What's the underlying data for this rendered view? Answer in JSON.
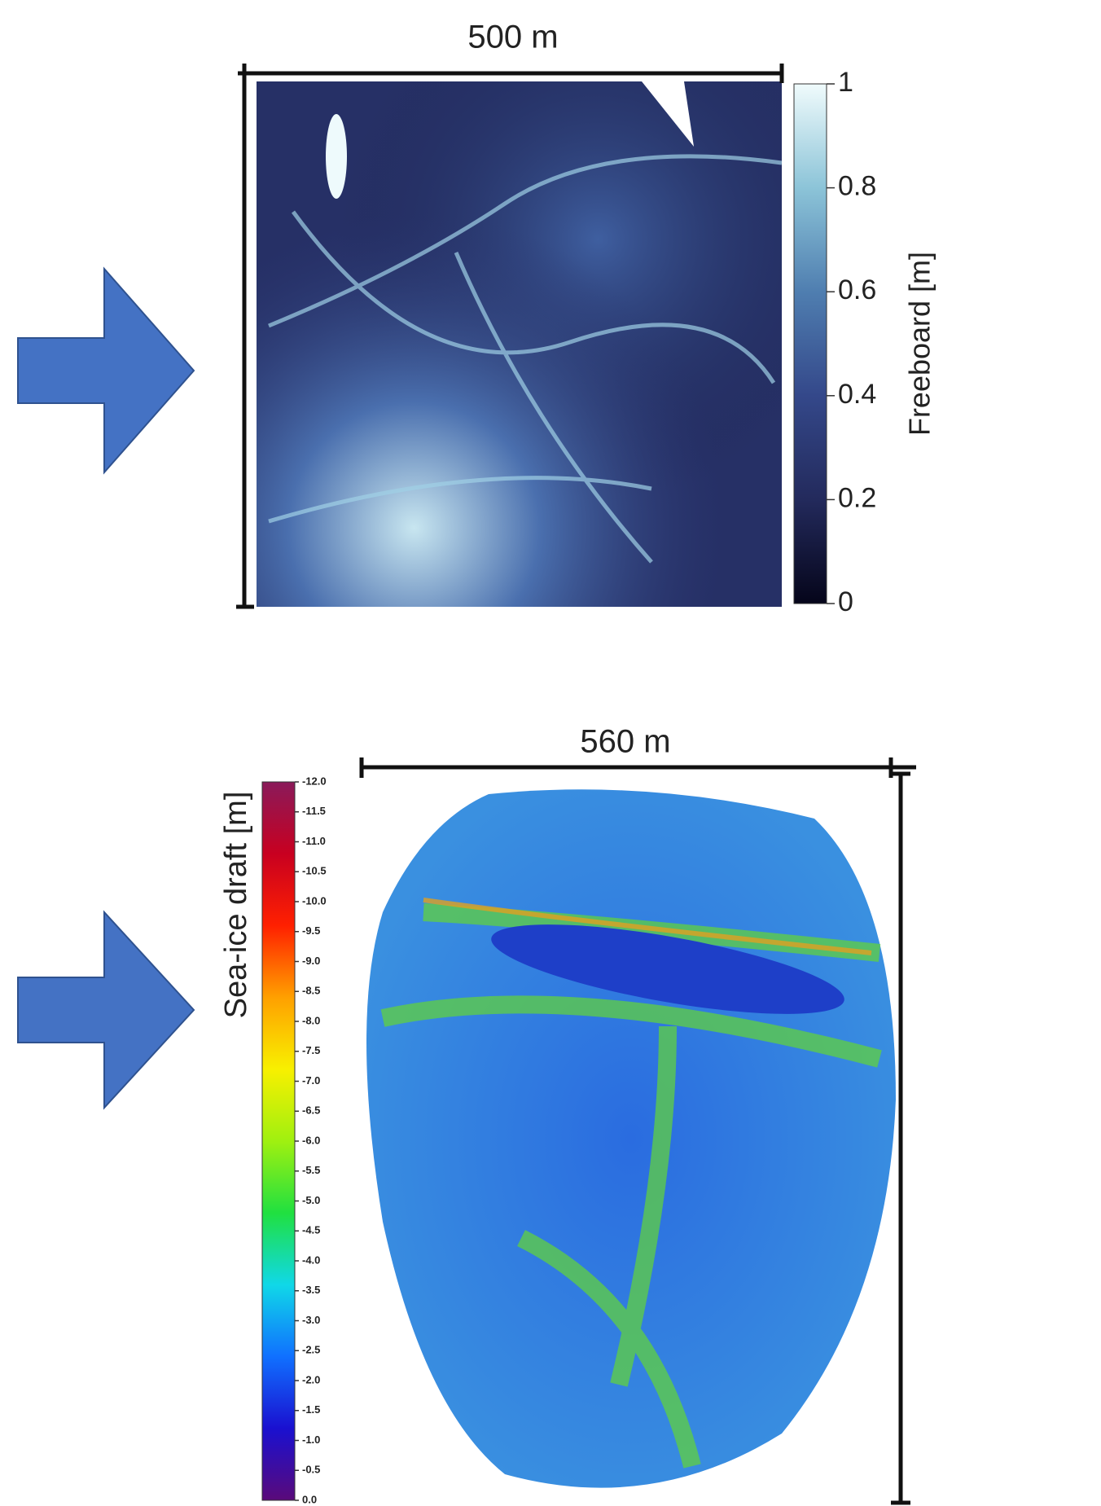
{
  "chart_data": [
    {
      "type": "colorbar",
      "scale_label": "500 m",
      "label": "Freeboard [m]",
      "colormap": [
        "#05051a",
        "#232a5c",
        "#34488a",
        "#4f7eb0",
        "#8cc4d8",
        "#f0fbfc"
      ],
      "ylim": [
        0,
        1
      ],
      "yticks": [
        0,
        0.2,
        0.4,
        0.6,
        0.8,
        1
      ]
    },
    {
      "type": "colorbar",
      "scale_label": "560 m",
      "label": "Sea-ice draft [m]",
      "colormap": [
        "#5a0a7a",
        "#1a10d0",
        "#1070ff",
        "#10d8e8",
        "#20e040",
        "#a0f010",
        "#f8f000",
        "#ffa000",
        "#ff2000",
        "#c80020",
        "#8a1a5a"
      ],
      "ylim": [
        0,
        -12
      ],
      "yticks": [
        {
          "value": -12,
          "label": "-12.0"
        },
        {
          "value": -11.5,
          "label": "-11.5"
        },
        {
          "value": -11,
          "label": "-11.0"
        },
        {
          "value": -10.5,
          "label": "-10.5"
        },
        {
          "value": -10,
          "label": "-10.0"
        },
        {
          "value": -9.5,
          "label": "-9.5"
        },
        {
          "value": -9,
          "label": "-9.0"
        },
        {
          "value": -8.5,
          "label": "-8.5"
        },
        {
          "value": -8,
          "label": "-8.0"
        },
        {
          "value": -7.5,
          "label": "-7.5"
        },
        {
          "value": -7,
          "label": "-7.0"
        },
        {
          "value": -6.5,
          "label": "-6.5"
        },
        {
          "value": -6,
          "label": "-6.0"
        },
        {
          "value": -5.5,
          "label": "-5.5"
        },
        {
          "value": -5,
          "label": "-5.0"
        },
        {
          "value": -4.5,
          "label": "-4.5"
        },
        {
          "value": -4,
          "label": "-4.0"
        },
        {
          "value": -3.5,
          "label": "-3.5"
        },
        {
          "value": -3,
          "label": "-3.0"
        },
        {
          "value": -2.5,
          "label": "-2.5"
        },
        {
          "value": -2,
          "label": "-2.0"
        },
        {
          "value": -1.5,
          "label": "-1.5"
        },
        {
          "value": -1,
          "label": "-1.0"
        },
        {
          "value": -0.5,
          "label": "-0.5"
        },
        {
          "value": 0,
          "label": "0.0"
        }
      ]
    }
  ]
}
